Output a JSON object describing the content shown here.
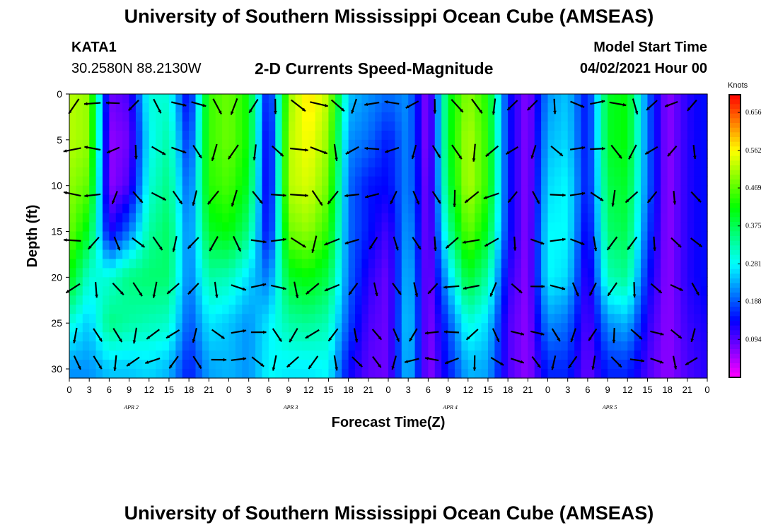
{
  "header": {
    "title": "University of Southern Mississippi Ocean Cube (AMSEAS)",
    "station": "KATA1",
    "coords": "30.2580N  88.2130W",
    "chart_title": "2-D Currents Speed-Magnitude",
    "model_start_label": "Model Start Time",
    "model_start_value": "04/02/2021 Hour 00",
    "footer_title": "University of Southern Mississippi Ocean Cube (AMSEAS)"
  },
  "chart_data": {
    "type": "heatmap",
    "title": "2-D Currents Speed-Magnitude",
    "xlabel": "Forecast Time(Z)",
    "ylabel": "Depth (ft)",
    "x_ticks": [
      "0",
      "3",
      "6",
      "9",
      "12",
      "15",
      "18",
      "21",
      "0",
      "3",
      "6",
      "9",
      "12",
      "15",
      "18",
      "21",
      "0",
      "3",
      "6",
      "9",
      "12",
      "15",
      "18",
      "21",
      "0",
      "3",
      "6",
      "9",
      "12",
      "15",
      "18",
      "21",
      "0"
    ],
    "x_range_hours": [
      0,
      96
    ],
    "date_labels": [
      {
        "label": "APR 2",
        "hour": 9
      },
      {
        "label": "APR 3",
        "hour": 33
      },
      {
        "label": "APR 4",
        "hour": 57
      },
      {
        "label": "APR 5",
        "hour": 81
      }
    ],
    "y_ticks": [
      0,
      5,
      10,
      15,
      20,
      25,
      30
    ],
    "ylim": [
      0,
      31
    ],
    "colorbar": {
      "unit": "Knots",
      "ticks": [
        "0.656",
        "0.562",
        "0.469",
        "0.375",
        "0.281",
        "0.188",
        "0.094"
      ],
      "range": [
        0.0,
        0.7
      ]
    },
    "column_speed_profiles": {
      "note": "estimated speed magnitude (knots) at depths 0,5,10,15,20,25,30 ft; one profile per forecast hour column",
      "hours": [
        0,
        3,
        6,
        9,
        12,
        15,
        18,
        21,
        24,
        27,
        30,
        33,
        36,
        39,
        42,
        45,
        48,
        51,
        54,
        57,
        60,
        63,
        66,
        69,
        72,
        75,
        78,
        81,
        84,
        87,
        90,
        93,
        96
      ],
      "speeds": [
        [
          0.52,
          0.52,
          0.5,
          0.48,
          0.42,
          0.3,
          0.22
        ],
        [
          0.5,
          0.5,
          0.47,
          0.4,
          0.3,
          0.25,
          0.22
        ],
        [
          0.08,
          0.06,
          0.06,
          0.12,
          0.3,
          0.35,
          0.25
        ],
        [
          0.1,
          0.08,
          0.1,
          0.2,
          0.35,
          0.33,
          0.25
        ],
        [
          0.3,
          0.28,
          0.3,
          0.33,
          0.36,
          0.32,
          0.26
        ],
        [
          0.3,
          0.33,
          0.35,
          0.37,
          0.36,
          0.31,
          0.24
        ],
        [
          0.12,
          0.15,
          0.18,
          0.2,
          0.2,
          0.18,
          0.15
        ],
        [
          0.45,
          0.45,
          0.44,
          0.4,
          0.33,
          0.27,
          0.23
        ],
        [
          0.48,
          0.48,
          0.46,
          0.42,
          0.32,
          0.25,
          0.24
        ],
        [
          0.42,
          0.42,
          0.4,
          0.35,
          0.26,
          0.22,
          0.22
        ],
        [
          0.12,
          0.1,
          0.1,
          0.12,
          0.2,
          0.27,
          0.28
        ],
        [
          0.5,
          0.52,
          0.52,
          0.48,
          0.4,
          0.33,
          0.27
        ],
        [
          0.58,
          0.56,
          0.54,
          0.5,
          0.42,
          0.34,
          0.27
        ],
        [
          0.52,
          0.5,
          0.48,
          0.44,
          0.38,
          0.32,
          0.28
        ],
        [
          0.25,
          0.22,
          0.2,
          0.2,
          0.2,
          0.18,
          0.14
        ],
        [
          0.22,
          0.2,
          0.15,
          0.15,
          0.12,
          0.1,
          0.09
        ],
        [
          0.2,
          0.15,
          0.14,
          0.1,
          0.08,
          0.08,
          0.08
        ],
        [
          0.22,
          0.22,
          0.22,
          0.24,
          0.26,
          0.27,
          0.26
        ],
        [
          0.05,
          0.05,
          0.06,
          0.06,
          0.06,
          0.06,
          0.06
        ],
        [
          0.4,
          0.4,
          0.38,
          0.33,
          0.25,
          0.18,
          0.15
        ],
        [
          0.5,
          0.52,
          0.52,
          0.48,
          0.4,
          0.3,
          0.24
        ],
        [
          0.43,
          0.44,
          0.44,
          0.4,
          0.33,
          0.26,
          0.23
        ],
        [
          0.15,
          0.15,
          0.15,
          0.15,
          0.12,
          0.1,
          0.1
        ],
        [
          0.06,
          0.06,
          0.06,
          0.06,
          0.06,
          0.06,
          0.06
        ],
        [
          0.22,
          0.24,
          0.26,
          0.28,
          0.28,
          0.22,
          0.16
        ],
        [
          0.25,
          0.26,
          0.28,
          0.28,
          0.26,
          0.2,
          0.16
        ],
        [
          0.14,
          0.14,
          0.14,
          0.12,
          0.1,
          0.09,
          0.08
        ],
        [
          0.4,
          0.4,
          0.38,
          0.36,
          0.32,
          0.22,
          0.16
        ],
        [
          0.42,
          0.42,
          0.4,
          0.38,
          0.34,
          0.24,
          0.16
        ],
        [
          0.2,
          0.2,
          0.2,
          0.18,
          0.15,
          0.12,
          0.1
        ],
        [
          0.06,
          0.06,
          0.06,
          0.06,
          0.06,
          0.06,
          0.06
        ],
        [
          0.12,
          0.12,
          0.12,
          0.12,
          0.12,
          0.11,
          0.1
        ],
        [
          0.15,
          0.15,
          0.15,
          0.15,
          0.15,
          0.13,
          0.12
        ]
      ]
    }
  }
}
